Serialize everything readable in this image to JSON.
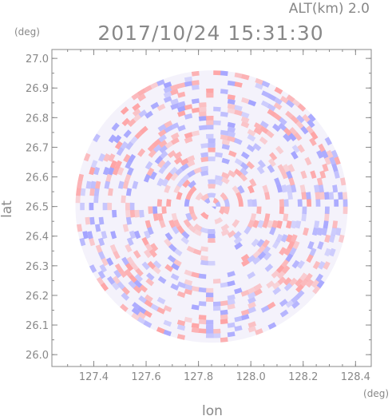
{
  "header": {
    "altitude_label": "ALT(km) 2.0",
    "timestamp": "2017/10/24 15:31:30"
  },
  "chart_data": {
    "type": "heatmap",
    "title": "2017/10/24 15:31:30",
    "subtitle": "ALT(km) 2.0",
    "xlabel": "lon",
    "ylabel": "lat",
    "x_unit": "(deg)",
    "y_unit": "(deg)",
    "xlim": [
      127.24,
      128.46
    ],
    "ylim": [
      25.96,
      27.03
    ],
    "x_ticks": [
      "127.4",
      "127.6",
      "127.8",
      "128.0",
      "128.2",
      "128.4"
    ],
    "y_ticks": [
      "26.0",
      "26.1",
      "26.2",
      "26.3",
      "26.4",
      "26.5",
      "26.6",
      "26.7",
      "26.8",
      "26.9",
      "27.0"
    ],
    "center": {
      "lon": 127.85,
      "lat": 26.5
    },
    "radius_deg": 0.52,
    "colors": {
      "positive": "#ff9a9a",
      "negative": "#9a9aff",
      "axis": "#888888"
    },
    "grid": false,
    "legend": "none"
  }
}
